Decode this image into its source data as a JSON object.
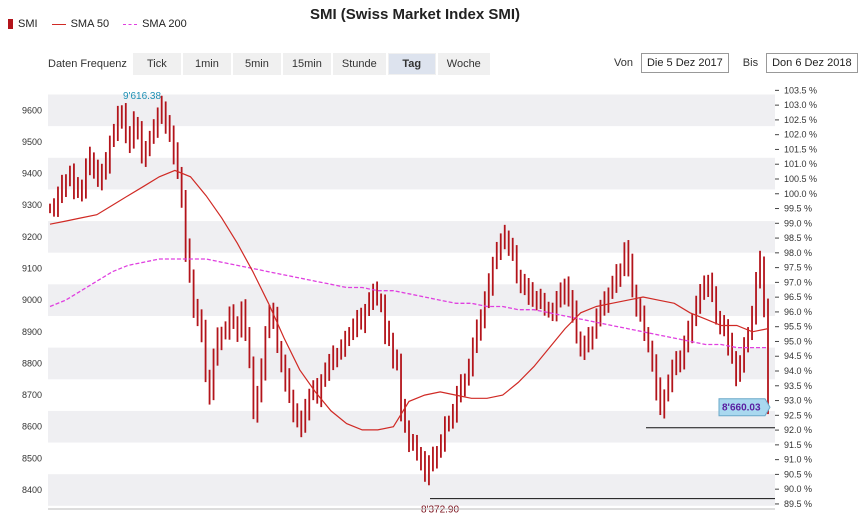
{
  "legend": {
    "smi": "SMI",
    "sma50": "SMA 50",
    "sma200": "SMA 200"
  },
  "title": "SMI (Swiss Market Index SMI)",
  "toolbar": {
    "label": "Daten Frequenz",
    "buttons": [
      "Tick",
      "1min",
      "5min",
      "15min",
      "Stunde",
      "Tag",
      "Woche"
    ],
    "active": "Tag"
  },
  "daterange": {
    "from_label": "Von",
    "from": "Die 5 Dez 2017",
    "to_label": "Bis",
    "to": "Don 6 Dez 2018"
  },
  "colors": {
    "candle": "#b3141b",
    "sma50": "#d02a25",
    "sma200": "#e040e0",
    "band": "#efeff2",
    "lastbox": "#a9d8ef"
  },
  "chart_data": {
    "type": "bar",
    "title": "SMI (Swiss Market Index SMI)",
    "ylim": [
      8340,
      9680
    ],
    "left_ticks": [
      8400,
      8500,
      8600,
      8700,
      8800,
      8900,
      9000,
      9100,
      9200,
      9300,
      9400,
      9500,
      9600
    ],
    "right_ticks": [
      "89.5 %",
      "90.0 %",
      "90.5 %",
      "91.0 %",
      "91.5 %",
      "92.0 %",
      "92.5 %",
      "93.0 %",
      "93.5 %",
      "94.0 %",
      "94.5 %",
      "95.0 %",
      "95.5 %",
      "96.0 %",
      "96.5 %",
      "97.0 %",
      "97.5 %",
      "98.0 %",
      "98.5 %",
      "99.0 %",
      "99.5 %",
      "100.0 %",
      "100.5 %",
      "101.0 %",
      "101.5 %",
      "102.0 %",
      "102.5 %",
      "103.0 %",
      "103.5 %"
    ],
    "annotations": {
      "high": {
        "value": 9616.38,
        "label": "9'616.38"
      },
      "low": {
        "value": 8372.9,
        "label": "8'372.90"
      },
      "last": {
        "value": 8660.03,
        "label": "8'660.03"
      }
    },
    "smi_close": [
      9290,
      9300,
      9330,
      9360,
      9380,
      9400,
      9350,
      9340,
      9360,
      9420,
      9450,
      9420,
      9380,
      9400,
      9430,
      9500,
      9530,
      9580,
      9600,
      9520,
      9500,
      9560,
      9540,
      9450,
      9470,
      9520,
      9550,
      9580,
      9610,
      9560,
      9520,
      9460,
      9400,
      9320,
      9160,
      9080,
      8980,
      8940,
      8900,
      8760,
      8700,
      8820,
      8880,
      8900,
      8910,
      8950,
      8930,
      8900,
      8970,
      8900,
      8800,
      8650,
      8700,
      8780,
      8900,
      8960,
      8940,
      8850,
      8800,
      8750,
      8700,
      8650,
      8620,
      8600,
      8650,
      8700,
      8720,
      8700,
      8750,
      8780,
      8800,
      8820,
      8830,
      8850,
      8870,
      8900,
      8920,
      8940,
      8930,
      8970,
      9000,
      9020,
      9000,
      8990,
      8900,
      8880,
      8820,
      8800,
      8650,
      8600,
      8550,
      8540,
      8520,
      8500,
      8450,
      8480,
      8500,
      8520,
      8550,
      8600,
      8620,
      8650,
      8700,
      8730,
      8750,
      8790,
      8850,
      8900,
      8950,
      9000,
      9050,
      9120,
      9160,
      9180,
      9200,
      9170,
      9140,
      9080,
      9060,
      9040,
      9020,
      9000,
      9010,
      8990,
      8980,
      8960,
      8970,
      9000,
      9020,
      9050,
      9000,
      8960,
      8880,
      8850,
      8860,
      8880,
      8900,
      8950,
      8970,
      8990,
      9020,
      9050,
      9080,
      9100,
      9160,
      9110,
      9030,
      8980,
      8950,
      8900,
      8850,
      8800,
      8720,
      8660,
      8700,
      8740,
      8780,
      8800,
      8820,
      8860,
      8900,
      8940,
      8990,
      9020,
      9040,
      9060,
      9010,
      8950,
      8930,
      8910,
      8860,
      8820,
      8760,
      8800,
      8850,
      8900,
      8960,
      9060,
      9120,
      8980,
      8660
    ],
    "sma50": [
      9240,
      9250,
      9260,
      9270,
      9300,
      9330,
      9360,
      9390,
      9410,
      9390,
      9330,
      9260,
      9180,
      9090,
      8990,
      8880,
      8780,
      8710,
      8650,
      8610,
      8590,
      8590,
      8600,
      8680,
      8700,
      8710,
      8700,
      8690,
      8690,
      8700,
      8740,
      8790,
      8850,
      8910,
      8960,
      8980,
      8990,
      9000,
      9010,
      9000,
      8990,
      8960,
      8940,
      8920,
      8920,
      8900,
      8910
    ],
    "sma200": [
      8980,
      9000,
      9030,
      9060,
      9090,
      9110,
      9120,
      9130,
      9130,
      9130,
      9130,
      9120,
      9110,
      9100,
      9090,
      9080,
      9070,
      9060,
      9050,
      9040,
      9040,
      9030,
      9030,
      9020,
      9010,
      9000,
      8990,
      8990,
      8980,
      8980,
      8970,
      8970,
      8960,
      8950,
      8940,
      8930,
      8920,
      8910,
      8900,
      8890,
      8880,
      8870,
      8860,
      8860,
      8850,
      8850,
      8850
    ]
  }
}
